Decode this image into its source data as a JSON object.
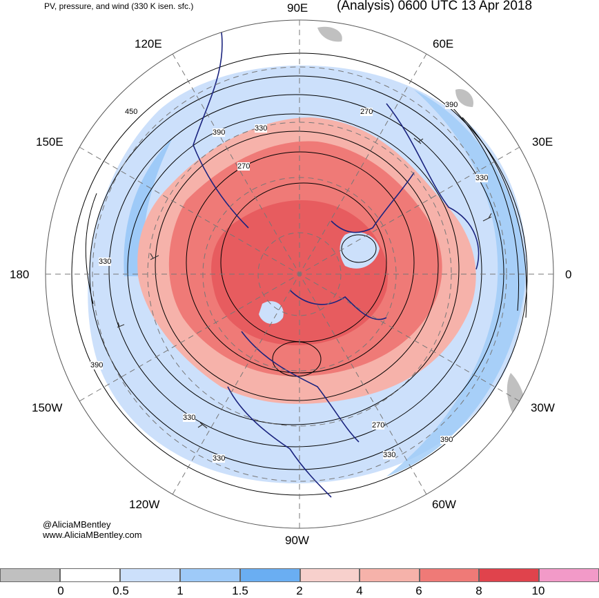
{
  "header": {
    "subtitle": "PV, pressure, and wind (330 K isen. sfc.)",
    "title": "(Analysis) 0600 UTC 13 Apr 2018"
  },
  "map": {
    "projection": "north-polar-stereographic",
    "longitude_labels": [
      "90E",
      "60E",
      "120E",
      "150E",
      "30E",
      "180",
      "0",
      "150W",
      "30W",
      "120W",
      "60W",
      "90W"
    ],
    "contour_labels": [
      "450",
      "390",
      "330",
      "270",
      "330",
      "390",
      "330",
      "270",
      "330",
      "390",
      "270",
      "390",
      "330",
      "330",
      "390"
    ]
  },
  "credits": {
    "handle": "@AliciaMBentley",
    "website": "www.AliciaMBentley.com"
  },
  "colorbar": {
    "ticks": [
      "0",
      "0.5",
      "1",
      "1.5",
      "2",
      "4",
      "6",
      "8",
      "10"
    ],
    "colors": [
      "#c0c0c0",
      "#ffffff",
      "#cce0fb",
      "#9ecaf8",
      "#6aaef2",
      "#f7d0cc",
      "#f6b2aa",
      "#ef7a77",
      "#e0434c",
      "#f29ac8"
    ]
  },
  "colors": {
    "pv_low": "#9ecaf8",
    "pv_high": "#ef7a77",
    "coastline": "#1a237e",
    "contour": "#000000",
    "grid": "#777777"
  }
}
